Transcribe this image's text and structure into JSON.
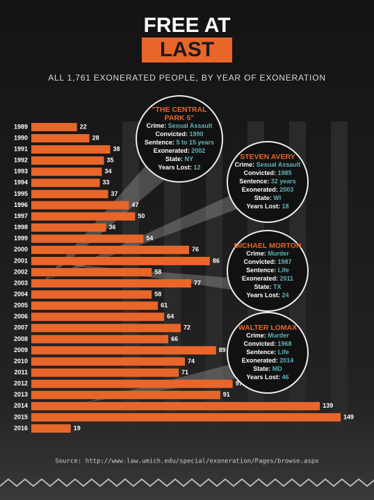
{
  "chart_data": {
    "type": "bar",
    "orientation": "horizontal",
    "title_lines": [
      "FREE AT",
      "LAST"
    ],
    "subtitle": "ALL 1,761 EXONERATED PEOPLE, BY YEAR OF EXONERATION",
    "categories": [
      "1989",
      "1990",
      "1991",
      "1992",
      "1993",
      "1994",
      "1995",
      "1996",
      "1997",
      "1998",
      "1999",
      "2000",
      "2001",
      "2002",
      "2003",
      "2004",
      "2005",
      "2006",
      "2007",
      "2008",
      "2009",
      "2010",
      "2011",
      "2012",
      "2013",
      "2014",
      "2015",
      "2016"
    ],
    "values": [
      22,
      28,
      38,
      35,
      34,
      33,
      37,
      47,
      50,
      36,
      54,
      76,
      86,
      58,
      77,
      58,
      61,
      64,
      72,
      66,
      89,
      74,
      71,
      97,
      91,
      139,
      149,
      19
    ],
    "color": "#e8662a",
    "annotations": [
      {
        "title_lines": [
          "\"THE CENTRAL",
          "PARK 5\""
        ],
        "fields": [
          {
            "label": "Crime:",
            "value": "Sexual Assault"
          },
          {
            "label": "Convicted:",
            "value": "1990"
          },
          {
            "label": "Sentence:",
            "value": "5 to 15 years"
          },
          {
            "label": "Exonerated:",
            "value": "2002"
          },
          {
            "label": "State:",
            "value": "NY"
          },
          {
            "label": "Years Lost:",
            "value": "12"
          }
        ]
      },
      {
        "title_lines": [
          "STEVEN AVERY"
        ],
        "fields": [
          {
            "label": "Crime:",
            "value": "Sexual Assault"
          },
          {
            "label": "Convicted:",
            "value": "1985"
          },
          {
            "label": "Sentence:",
            "value": "32 years"
          },
          {
            "label": "Exonerated:",
            "value": "2003"
          },
          {
            "label": "State:",
            "value": "WI"
          },
          {
            "label": "Years Lost:",
            "value": "18"
          }
        ]
      },
      {
        "title_lines": [
          "MICHAEL MORTON"
        ],
        "fields": [
          {
            "label": "Crime:",
            "value": "Murder"
          },
          {
            "label": "Convicted:",
            "value": "1987"
          },
          {
            "label": "Sentence:",
            "value": "Life"
          },
          {
            "label": "Exonerated:",
            "value": "2011"
          },
          {
            "label": "State:",
            "value": "TX"
          },
          {
            "label": "Years Lost:",
            "value": "24"
          }
        ]
      },
      {
        "title_lines": [
          "WALTER LOMAX"
        ],
        "fields": [
          {
            "label": "Crime:",
            "value": "Murder"
          },
          {
            "label": "Convicted:",
            "value": "1968"
          },
          {
            "label": "Sentence:",
            "value": "Life"
          },
          {
            "label": "Exonerated:",
            "value": "2014"
          },
          {
            "label": "State:",
            "value": "MD"
          },
          {
            "label": "Years Lost:",
            "value": "46"
          }
        ]
      }
    ],
    "source": "Source: http://www.law.umich.edu/special/exoneration/Pages/browse.aspx"
  }
}
